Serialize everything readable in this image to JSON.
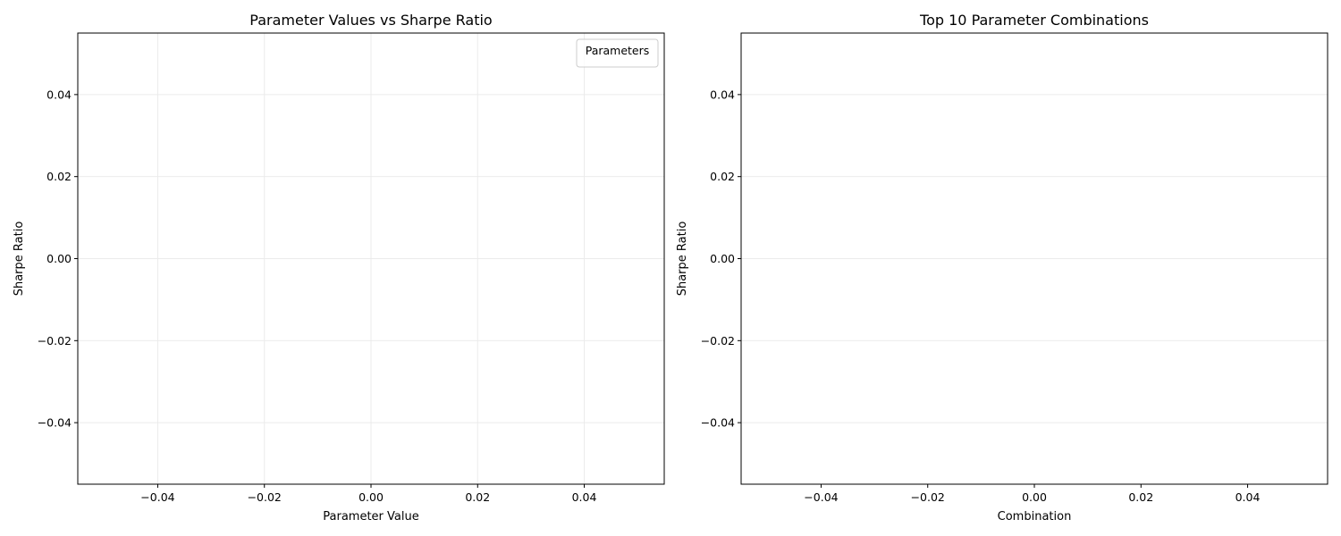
{
  "chart_data": [
    {
      "type": "scatter",
      "title": "Parameter Values vs Sharpe Ratio",
      "xlabel": "Parameter Value",
      "ylabel": "Sharpe Ratio",
      "xlim": [
        -0.055,
        0.055
      ],
      "ylim": [
        -0.055,
        0.055
      ],
      "xticks": [
        -0.04,
        -0.02,
        0.0,
        0.02,
        0.04
      ],
      "xtick_labels": [
        "−0.04",
        "−0.02",
        "0.00",
        "0.02",
        "0.04"
      ],
      "yticks": [
        -0.04,
        -0.02,
        0.0,
        0.02,
        0.04
      ],
      "ytick_labels": [
        "−0.04",
        "−0.02",
        "0.00",
        "0.02",
        "0.04"
      ],
      "grid": true,
      "legend": {
        "title": "Parameters",
        "placement": "top-right",
        "entries": []
      },
      "series": []
    },
    {
      "type": "bar",
      "title": "Top 10 Parameter Combinations",
      "xlabel": "Combination",
      "ylabel": "Sharpe Ratio",
      "xlim": [
        -0.055,
        0.055
      ],
      "ylim": [
        -0.055,
        0.055
      ],
      "xticks": [
        -0.04,
        -0.02,
        0.0,
        0.02,
        0.04
      ],
      "xtick_labels": [
        "−0.04",
        "−0.02",
        "0.00",
        "0.02",
        "0.04"
      ],
      "yticks": [
        -0.04,
        -0.02,
        0.0,
        0.02,
        0.04
      ],
      "ytick_labels": [
        "−0.04",
        "−0.02",
        "0.00",
        "0.02",
        "0.04"
      ],
      "grid": "y",
      "categories": [],
      "values": []
    }
  ],
  "colors": {
    "grid": "#ebebeb",
    "axes": "#000000",
    "background": "#ffffff"
  }
}
